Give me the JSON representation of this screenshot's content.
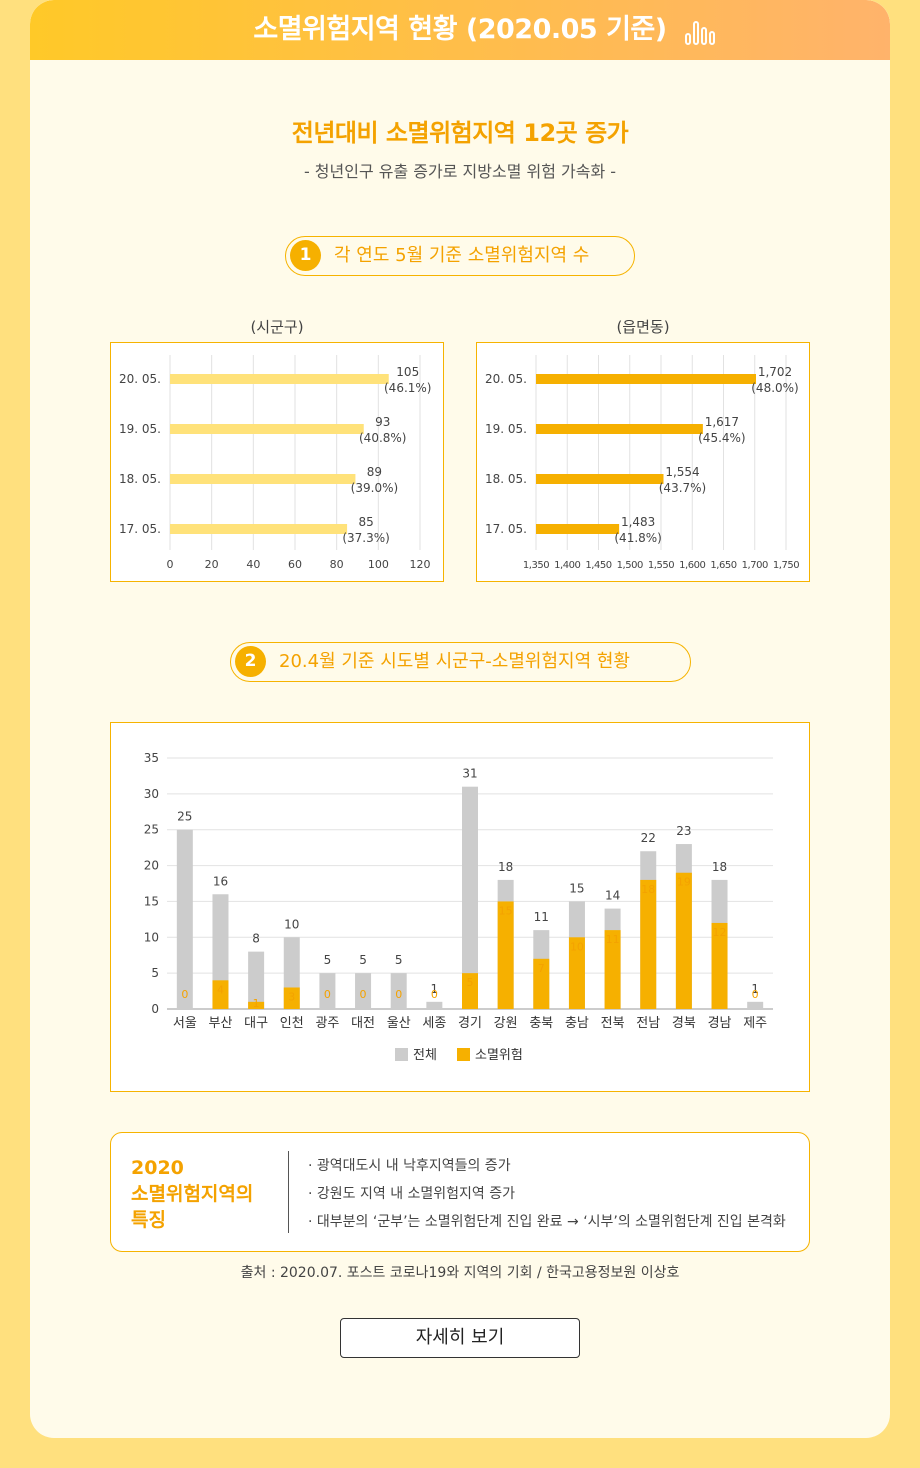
{
  "header": {
    "title": "소멸위험지역 현황 (2020.05 기준)",
    "icon": "bar-chart-icon"
  },
  "headline": "전년대비 소멸위험지역 12곳 증가",
  "subline": "- 청년인구 유출 증가로 지방소멸 위험 가속화 -",
  "section1": {
    "num": "1",
    "title": "각 연도 5월 기준 소멸위험지역 수"
  },
  "section2": {
    "num": "2",
    "title": "20.4월 기준 시도별 시군구-소멸위험지역 현황"
  },
  "colors": {
    "accent": "#f4a200",
    "light_bar": "#ffe27a",
    "dark_bar": "#f6b000",
    "gray_bar": "#cccccc",
    "page_bg": "#ffe07e"
  },
  "chart_data": [
    {
      "type": "bar",
      "orientation": "horizontal",
      "title": "(시군구)",
      "categories": [
        "20. 05.",
        "19. 05.",
        "18. 05.",
        "17. 05."
      ],
      "values": [
        105,
        93,
        89,
        85
      ],
      "value_labels": [
        "105",
        "93",
        "89",
        "85"
      ],
      "percent_labels": [
        "(46.1%)",
        "(40.8%)",
        "(39.0%)",
        "(37.3%)"
      ],
      "xlim": [
        0,
        120
      ],
      "xticks": [
        "0",
        "20",
        "40",
        "60",
        "80",
        "100",
        "120"
      ],
      "color": "#ffe27a",
      "grid": true
    },
    {
      "type": "bar",
      "orientation": "horizontal",
      "title": "(읍면동)",
      "categories": [
        "20. 05.",
        "19. 05.",
        "18. 05.",
        "17. 05."
      ],
      "values": [
        1702,
        1617,
        1554,
        1483
      ],
      "value_labels": [
        "1,702",
        "1,617",
        "1,554",
        "1,483"
      ],
      "percent_labels": [
        "(48.0%)",
        "(45.4%)",
        "(43.7%)",
        "(41.8%)"
      ],
      "xlim": [
        1350,
        1750
      ],
      "xticks": [
        "1,350",
        "1,400",
        "1,450",
        "1,500",
        "1,550",
        "1,600",
        "1,650",
        "1,700",
        "1,750"
      ],
      "color": "#f6b000",
      "grid": true
    },
    {
      "type": "bar",
      "orientation": "vertical",
      "categories": [
        "서울",
        "부산",
        "대구",
        "인천",
        "광주",
        "대전",
        "울산",
        "세종",
        "경기",
        "강원",
        "충북",
        "충남",
        "전북",
        "전남",
        "경북",
        "경남",
        "제주"
      ],
      "series": [
        {
          "name": "전체",
          "values": [
            25,
            16,
            8,
            10,
            5,
            5,
            5,
            1,
            31,
            18,
            11,
            15,
            14,
            22,
            23,
            18,
            1
          ],
          "color": "#cccccc"
        },
        {
          "name": "소멸위험",
          "values": [
            0,
            4,
            1,
            3,
            0,
            0,
            0,
            0,
            5,
            15,
            7,
            10,
            11,
            18,
            19,
            12,
            0
          ],
          "color": "#f6b000"
        }
      ],
      "ylim": [
        0,
        35
      ],
      "yticks": [
        "0",
        "5",
        "10",
        "15",
        "20",
        "25",
        "30",
        "35"
      ],
      "grid": true,
      "legend_position": "bottom"
    }
  ],
  "notes": {
    "title": [
      "2020",
      "소멸위험지역의",
      "특징"
    ],
    "items": [
      "· 광역대도시 내 낙후지역들의 증가",
      "· 강원도 지역 내 소멸위험지역 증가",
      "· 대부분의 ‘군부’는 소멸위험단계 진입 완료 → ‘시부’의 소멸위험단계 진입 본격화"
    ]
  },
  "source": "출처 : 2020.07. 포스트 코로나19와 지역의 기회 / 한국고용정보원 이상호",
  "more_button": "자세히 보기"
}
